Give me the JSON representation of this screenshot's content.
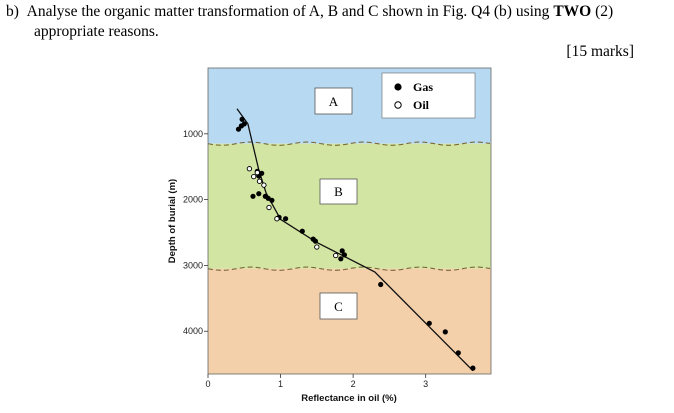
{
  "question": {
    "prefix": "b)",
    "line1_a": "Analyse the organic matter transformation of A, B and C shown in Fig. Q4 (b) using ",
    "line1_bold": "TWO",
    "line1_b": " (2)",
    "line2": "appropriate reasons.",
    "marks": "[15 marks]"
  },
  "chart_data": {
    "type": "scatter",
    "xlabel": "Reflectance in oil (%)",
    "ylabel": "Depth of burial (m)",
    "xlim": [
      0,
      3.9
    ],
    "ylim": [
      0,
      4650
    ],
    "y_inverted": true,
    "x_ticks": [
      "0",
      "1",
      "2",
      "3"
    ],
    "y_ticks": [
      "1000",
      "2000",
      "3000",
      "4000"
    ],
    "zones": [
      {
        "label": "A",
        "depth_from": 0,
        "depth_to": 1150,
        "color": "#b7daf2"
      },
      {
        "label": "B",
        "depth_from": 1150,
        "depth_to": 3050,
        "color": "#d3e5a2"
      },
      {
        "label": "C",
        "depth_from": 3050,
        "depth_to": 4650,
        "color": "#f3cfaa"
      }
    ],
    "legend": [
      {
        "name": "Gas",
        "marker": "filled-circle"
      },
      {
        "name": "Oil",
        "marker": "open-circle"
      }
    ],
    "legend_position": "top-right",
    "trend_line": [
      [
        0.4,
        620
      ],
      [
        0.55,
        850
      ],
      [
        0.7,
        1550
      ],
      [
        0.8,
        1900
      ],
      [
        1.0,
        2300
      ],
      [
        1.5,
        2650
      ],
      [
        2.3,
        3100
      ],
      [
        3.65,
        4600
      ]
    ],
    "series": [
      {
        "name": "Gas",
        "points": [
          [
            0.47,
            780
          ],
          [
            0.5,
            850
          ],
          [
            0.46,
            880
          ],
          [
            0.42,
            930
          ],
          [
            0.68,
            1570
          ],
          [
            0.74,
            1600
          ],
          [
            0.7,
            1640
          ],
          [
            0.62,
            1950
          ],
          [
            0.7,
            1910
          ],
          [
            0.79,
            1950
          ],
          [
            0.83,
            1980
          ],
          [
            0.88,
            2010
          ],
          [
            0.98,
            2270
          ],
          [
            1.07,
            2290
          ],
          [
            1.3,
            2480
          ],
          [
            1.45,
            2600
          ],
          [
            1.48,
            2630
          ],
          [
            1.85,
            2780
          ],
          [
            1.88,
            2840
          ],
          [
            1.83,
            2900
          ],
          [
            2.38,
            3290
          ],
          [
            3.05,
            3880
          ],
          [
            3.27,
            4010
          ],
          [
            3.45,
            4330
          ],
          [
            3.65,
            4560
          ]
        ],
        "color": "#000000"
      },
      {
        "name": "Oil",
        "points": [
          [
            0.57,
            1530
          ],
          [
            0.68,
            1590
          ],
          [
            0.63,
            1650
          ],
          [
            0.71,
            1720
          ],
          [
            0.77,
            1780
          ],
          [
            0.84,
            2120
          ],
          [
            0.95,
            2290
          ],
          [
            1.5,
            2720
          ],
          [
            1.76,
            2850
          ]
        ],
        "color": "#000000"
      }
    ]
  }
}
